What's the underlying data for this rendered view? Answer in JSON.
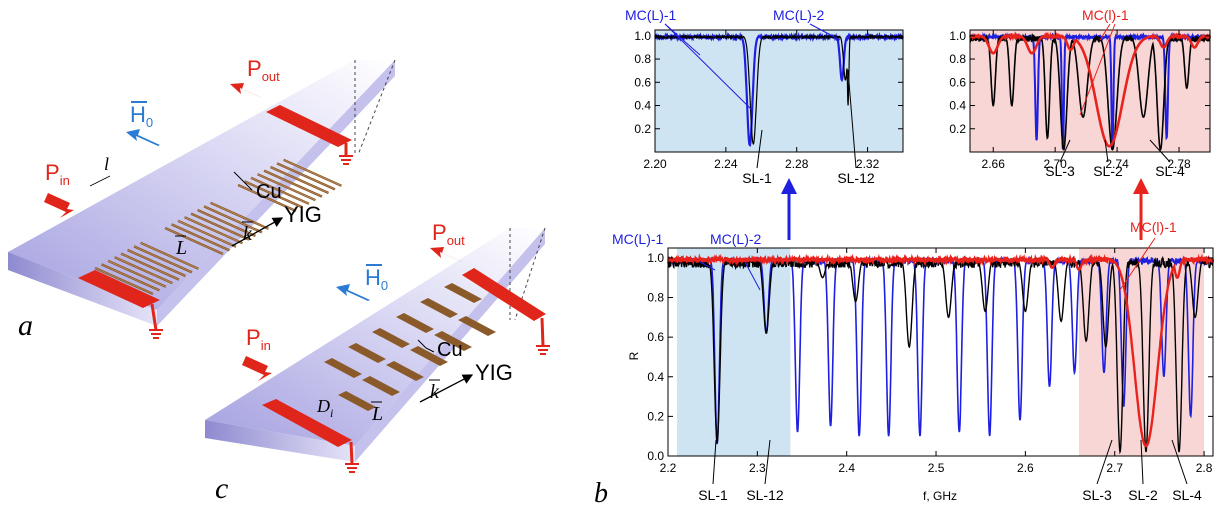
{
  "device_a": {
    "panel_label": "a",
    "p_in": "P",
    "p_in_sub": "in",
    "p_out": "P",
    "p_out_sub": "out",
    "h0": "H",
    "h0_sub": "0",
    "cu": "Cu",
    "yig": "YIG",
    "k": "k",
    "L": "L",
    "l": "l",
    "arrow_color": "#2b7bd3",
    "port_color": "#e0251b",
    "copper_color": "#8b5a2b",
    "substrate_color": "#b9b6e6"
  },
  "device_c": {
    "panel_label": "c",
    "p_in": "P",
    "p_in_sub": "in",
    "p_out": "P",
    "p_out_sub": "out",
    "h0": "H",
    "h0_sub": "0",
    "cu": "Cu",
    "yig": "YIG",
    "k": "k",
    "L": "L",
    "D": "D",
    "D_sub": "i"
  },
  "panel_b_label": "b",
  "colors": {
    "black": "#000000",
    "blue": "#1f1fe0",
    "red": "#e8231d",
    "blue_band": "#cfe4f3",
    "red_band": "#f8d6d6"
  },
  "main_chart": {
    "type": "line",
    "xlabel": "f, GHz",
    "ylabel": "R",
    "xlim": [
      2.2,
      2.81
    ],
    "ylim": [
      0.0,
      1.05
    ],
    "xticks": [
      "2.2",
      "2.3",
      "2.4",
      "2.5",
      "2.6",
      "2.7",
      "2.8"
    ],
    "yticks": [
      "0.0",
      "0.2",
      "0.4",
      "0.6",
      "0.8",
      "1.0"
    ],
    "bands": [
      {
        "from": 2.21,
        "to": 2.337,
        "color": "blue_band"
      },
      {
        "from": 2.66,
        "to": 2.8,
        "color": "red_band"
      }
    ],
    "labels_top": [
      {
        "text": "MC(L)-1",
        "color": "blue"
      },
      {
        "text": "MC(L)-2",
        "color": "blue"
      },
      {
        "text": "MC(l)-1",
        "color": "red"
      }
    ],
    "labels_bottom": [
      "SL-1",
      "SL-12",
      "SL-3",
      "SL-2",
      "SL-4"
    ]
  },
  "inset_left": {
    "type": "line",
    "xlim": [
      2.2,
      2.34
    ],
    "ylim": [
      0.0,
      1.05
    ],
    "xticks": [
      "2.20",
      "2.24",
      "2.28",
      "2.32"
    ],
    "yticks": [
      "0.2",
      "0.4",
      "0.6",
      "0.8",
      "1.0"
    ],
    "labels_top": [
      "MC(L)-1",
      "MC(L)-2"
    ],
    "labels_bottom": [
      "SL-1",
      "SL-12"
    ]
  },
  "inset_right": {
    "type": "line",
    "xlim": [
      2.645,
      2.8
    ],
    "ylim": [
      0.0,
      1.05
    ],
    "xticks": [
      "2.66",
      "2.70",
      "2.74",
      "2.78"
    ],
    "yticks": [
      "0.2",
      "0.4",
      "0.6",
      "0.8",
      "1.0"
    ],
    "labels_top": [
      "MC(l)-1"
    ],
    "labels_bottom": [
      "SL-3",
      "SL-2",
      "SL-4"
    ]
  },
  "chart_data": [
    {
      "type": "line",
      "xlabel": "f, GHz",
      "ylabel": "R",
      "xlim": [
        2.2,
        2.81
      ],
      "ylim": [
        0.0,
        1.05
      ],
      "series": [
        {
          "color": "blue",
          "dips": [
            [
              2.255,
              0.06
            ],
            [
              2.31,
              0.62
            ],
            [
              2.345,
              0.12
            ],
            [
              2.382,
              0.15
            ],
            [
              2.414,
              0.1
            ],
            [
              2.447,
              0.1
            ],
            [
              2.482,
              0.1
            ],
            [
              2.526,
              0.12
            ],
            [
              2.56,
              0.1
            ],
            [
              2.594,
              0.18
            ],
            [
              2.627,
              0.35
            ],
            [
              2.655,
              0.42
            ],
            [
              2.688,
              0.42
            ],
            [
              2.71,
              0.25
            ],
            [
              2.755,
              0.4
            ],
            [
              2.785,
              0.2
            ]
          ]
        },
        {
          "color": "black",
          "dips": [
            [
              2.255,
              0.07
            ],
            [
              2.31,
              0.62
            ],
            [
              2.373,
              0.9
            ],
            [
              2.41,
              0.78
            ],
            [
              2.47,
              0.55
            ],
            [
              2.514,
              0.7
            ],
            [
              2.555,
              0.73
            ],
            [
              2.6,
              0.73
            ],
            [
              2.64,
              0.68
            ],
            [
              2.668,
              0.58
            ],
            [
              2.69,
              0.55
            ],
            [
              2.706,
              0.02
            ],
            [
              2.735,
              0.02
            ],
            [
              2.772,
              0.02
            ],
            [
              2.79,
              0.7
            ]
          ]
        },
        {
          "color": "red",
          "dips": [
            [
              2.72,
              0.92
            ],
            [
              2.735,
              0.05
            ],
            [
              2.77,
              0.9
            ]
          ]
        }
      ]
    },
    {
      "type": "line",
      "xlim": [
        2.2,
        2.34
      ],
      "ylim": [
        0.0,
        1.05
      ],
      "series": [
        {
          "color": "blue",
          "dips": [
            [
              2.2535,
              0.06
            ],
            [
              2.3055,
              0.62
            ]
          ]
        },
        {
          "color": "black",
          "dips": [
            [
              2.2555,
              0.07
            ],
            [
              2.3075,
              0.62
            ]
          ]
        }
      ]
    },
    {
      "type": "line",
      "xlim": [
        2.645,
        2.8
      ],
      "ylim": [
        0.0,
        1.05
      ],
      "series": [
        {
          "color": "blue",
          "dips": [
            [
              2.688,
              0.1
            ],
            [
              2.772,
              0.12
            ]
          ]
        },
        {
          "color": "black",
          "dips": [
            [
              2.66,
              0.4
            ],
            [
              2.672,
              0.4
            ],
            [
              2.705,
              0.02
            ],
            [
              2.737,
              0.02
            ],
            [
              2.768,
              0.02
            ]
          ]
        },
        {
          "color": "red",
          "dips": [
            [
              2.735,
              0.05
            ]
          ]
        }
      ]
    }
  ]
}
